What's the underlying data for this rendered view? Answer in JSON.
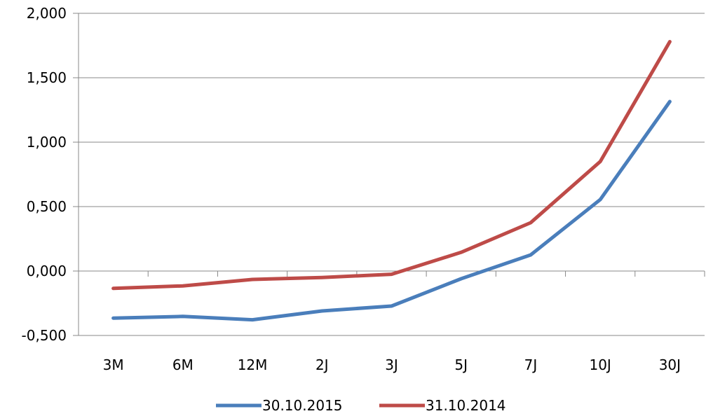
{
  "chart_data": {
    "type": "line",
    "categories": [
      "3M",
      "6M",
      "12M",
      "2J",
      "3J",
      "5J",
      "7J",
      "10J",
      "30J"
    ],
    "series": [
      {
        "name": "30.10.2015",
        "color": "#4a7ebb",
        "values": [
          -0.365,
          -0.352,
          -0.378,
          -0.31,
          -0.272,
          -0.06,
          0.125,
          0.555,
          1.315
        ]
      },
      {
        "name": "31.10.2014",
        "color": "#be4b48",
        "values": [
          -0.135,
          -0.115,
          -0.065,
          -0.05,
          -0.025,
          0.145,
          0.375,
          0.85,
          1.78
        ]
      }
    ],
    "y_ticks": [
      "-0,500",
      "0,000",
      "0,500",
      "1,000",
      "1,500",
      "2,000"
    ],
    "ylim": [
      -0.5,
      2.0
    ],
    "grid": "horizontal",
    "legend_position": "bottom"
  }
}
